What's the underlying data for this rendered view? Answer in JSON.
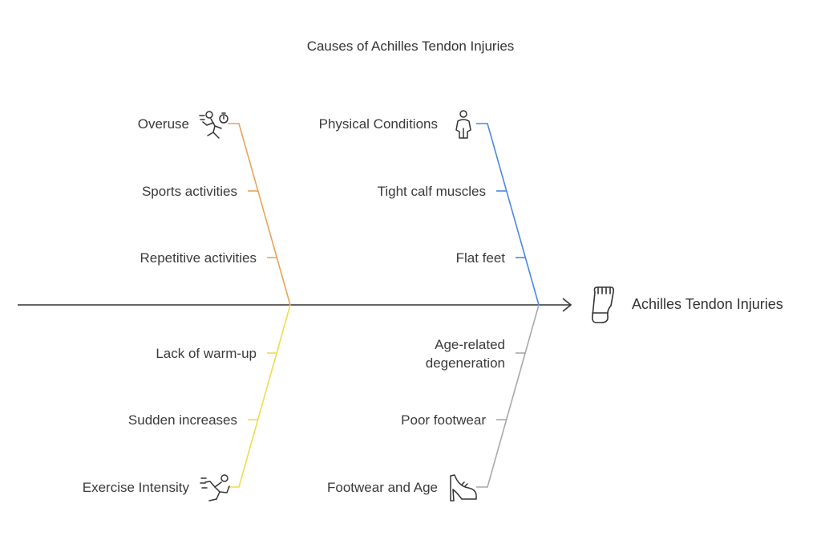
{
  "title": "Causes of Achilles Tendon Injuries",
  "effect": {
    "label": "Achilles Tendon Injuries",
    "icon": "foot-icon"
  },
  "categories": {
    "overuse": {
      "label": "Overuse",
      "icon": "running-stopwatch-icon",
      "color": "#E8A35A",
      "causes": [
        "Sports activities",
        "Repetitive activities"
      ]
    },
    "physical": {
      "label": "Physical Conditions",
      "icon": "person-body-icon",
      "color": "#4A86E8",
      "causes": [
        "Tight calf muscles",
        "Flat feet"
      ]
    },
    "exercise": {
      "label": "Exercise Intensity",
      "icon": "sprinting-person-icon",
      "color": "#F0DB4F",
      "causes": [
        "Lack of warm-up",
        "Sudden increases"
      ]
    },
    "footwear": {
      "label": "Footwear and Age",
      "icon": "high-heel-shoe-icon",
      "color": "#A8A8A8",
      "causes": [
        "Age-related degeneration",
        "Poor footwear"
      ]
    }
  },
  "spine_color": "#333333"
}
